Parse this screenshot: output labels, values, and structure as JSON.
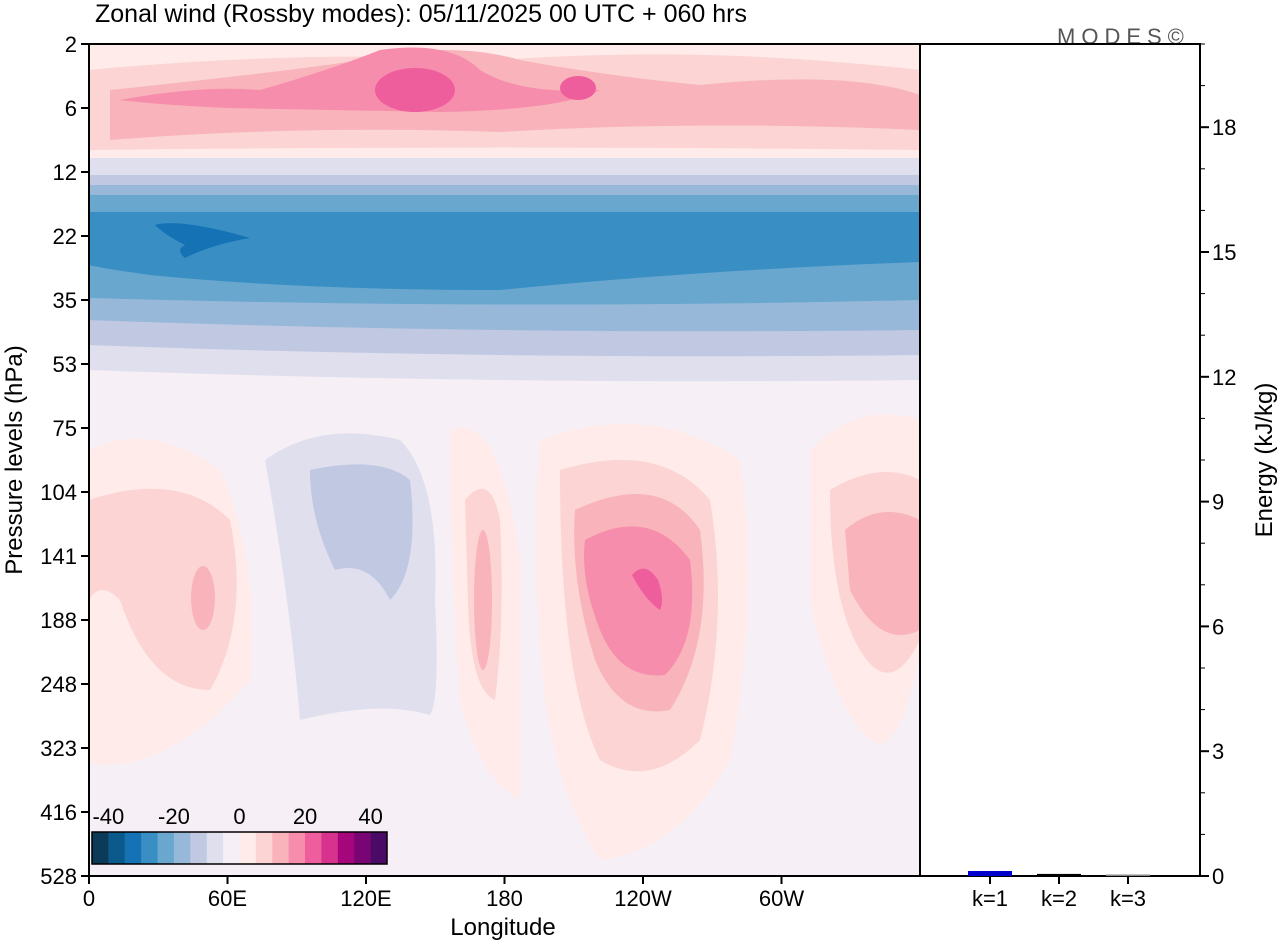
{
  "chart_data": [
    {
      "type": "heatmap",
      "title": "Zonal wind (Rossby modes):  05/11/2025  00 UTC  + 060 hrs",
      "xlabel": "Longitude",
      "ylabel": "Pressure levels (hPa)",
      "x_ticks": [
        "0",
        "60E",
        "120E",
        "180",
        "120W",
        "60W"
      ],
      "x_range": [
        0,
        360
      ],
      "y_ticks": [
        "2",
        "6",
        "12",
        "22",
        "35",
        "53",
        "75",
        "104",
        "141",
        "188",
        "248",
        "323",
        "416",
        "528"
      ],
      "colorbar": {
        "labels": [
          "-40",
          "-20",
          "0",
          "20",
          "40"
        ],
        "range": [
          -45,
          45
        ],
        "colors": [
          "#0b3b58",
          "#0c5a8c",
          "#1572b4",
          "#398fc4",
          "#6aa7cf",
          "#97b8d8",
          "#c0c8e2",
          "#dfdfee",
          "#f6f0f6",
          "#feebea",
          "#fbd4d3",
          "#f8b4ba",
          "#f78dac",
          "#ee5d9c",
          "#d8328f",
          "#a6067c",
          "#790474",
          "#4b0a66"
        ]
      },
      "features": [
        {
          "level_range": [
            "2",
            "12"
          ],
          "description_value": "easterly-positive band, max ~25 near 140E"
        },
        {
          "level_range": [
            "12",
            "53"
          ],
          "description_value": "negative band, min ~-25 near 30E at 22 hPa"
        },
        {
          "level_range": [
            "75",
            "416"
          ],
          "description_value": "alternating lobes, max ~25 near 120W at 141 hPa"
        }
      ]
    },
    {
      "type": "bar",
      "ylabel": "Energy (kJ/kg)",
      "categories": [
        "k=1",
        "k=2",
        "k=3"
      ],
      "values": [
        0.12,
        0.05,
        0.02
      ],
      "bar_colors": [
        "#0000cc",
        "#000000",
        "#888888"
      ],
      "y_ticks": [
        "0",
        "3",
        "6",
        "9",
        "12",
        "15",
        "18"
      ],
      "ylim": [
        0,
        20
      ]
    }
  ],
  "logo": "MODES©"
}
